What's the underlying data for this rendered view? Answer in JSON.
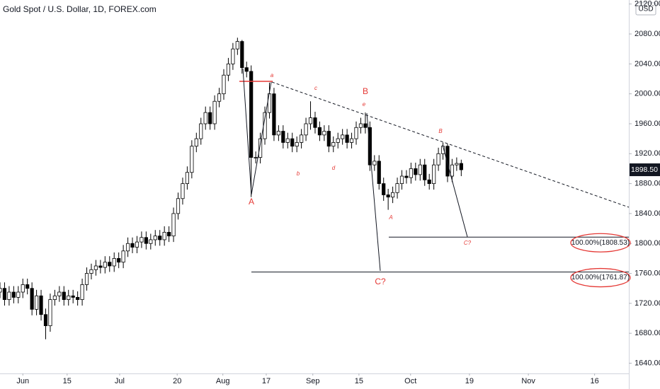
{
  "chart_data": {
    "type": "candlestick",
    "title": "Gold Spot / U.S. Dollar, 1D, FOREX.com",
    "currency": "USD",
    "xlim": [
      0,
      137.7
    ],
    "xticks": [
      {
        "value": 5,
        "label": "Jun"
      },
      {
        "value": 14.7,
        "label": "15"
      },
      {
        "value": 26.2,
        "label": "Jul"
      },
      {
        "value": 38.8,
        "label": "20"
      },
      {
        "value": 48.8,
        "label": "Aug"
      },
      {
        "value": 58.3,
        "label": "17"
      },
      {
        "value": 68.5,
        "label": "Sep"
      },
      {
        "value": 78.6,
        "label": "15"
      },
      {
        "value": 89.9,
        "label": "Oct"
      },
      {
        "value": 102.8,
        "label": "19"
      },
      {
        "value": 115.7,
        "label": "Nov"
      },
      {
        "value": 130.2,
        "label": "16"
      }
    ],
    "ylim": [
      1626.3,
      2125.4
    ],
    "yticks": [
      {
        "value": 1640,
        "label": "1640.00"
      },
      {
        "value": 1680,
        "label": "1680.00"
      },
      {
        "value": 1720,
        "label": "1720.00"
      },
      {
        "value": 1760,
        "label": "1760.00"
      },
      {
        "value": 1800,
        "label": "1800.00"
      },
      {
        "value": 1840,
        "label": "1840.00"
      },
      {
        "value": 1880,
        "label": "1880.00"
      },
      {
        "value": 1920,
        "label": "1920.00"
      },
      {
        "value": 1960,
        "label": "1960.00"
      },
      {
        "value": 2000,
        "label": "2000.00"
      },
      {
        "value": 2040,
        "label": "2040.00"
      },
      {
        "value": 2080,
        "label": "2080.00"
      },
      {
        "value": 2120,
        "label": "2120.00"
      }
    ],
    "up_color": "#ffffff",
    "down_color": "#000000",
    "open": [
      1735,
      1740,
      1725,
      1735,
      1728,
      1735,
      1745,
      1740,
      1712,
      1730,
      1705,
      1690,
      1725,
      1730,
      1735,
      1725,
      1730,
      1728,
      1725,
      1745,
      1760,
      1765,
      1770,
      1768,
      1775,
      1770,
      1780,
      1775,
      1790,
      1800,
      1795,
      1802,
      1808,
      1800,
      1805,
      1810,
      1805,
      1815,
      1810,
      1840,
      1860,
      1880,
      1895,
      1930,
      1940,
      1960,
      1975,
      1960,
      1990,
      2000,
      2025,
      2040,
      2060,
      2070,
      2035,
      2030,
      1915,
      1915,
      1940,
      1975,
      2000,
      1945,
      1950,
      1935,
      1940,
      1930,
      1935,
      1945,
      1960,
      1968,
      1955,
      1945,
      1950,
      1930,
      1935,
      1940,
      1945,
      1935,
      1940,
      1955,
      1960,
      1955,
      1905,
      1910,
      1880,
      1865,
      1862,
      1868,
      1880,
      1890,
      1888,
      1900,
      1892,
      1905,
      1885,
      1880,
      1905,
      1920,
      1930,
      1890,
      1905,
      1907
    ],
    "high": [
      1748,
      1748,
      1743,
      1743,
      1743,
      1753,
      1753,
      1748,
      1738,
      1738,
      1713,
      1733,
      1738,
      1743,
      1743,
      1738,
      1738,
      1736,
      1753,
      1768,
      1773,
      1778,
      1778,
      1783,
      1783,
      1788,
      1788,
      1798,
      1808,
      1808,
      1810,
      1816,
      1816,
      1813,
      1818,
      1818,
      1823,
      1823,
      1848,
      1868,
      1888,
      1903,
      1938,
      1948,
      1968,
      1983,
      1983,
      1998,
      2008,
      2033,
      2048,
      2068,
      2075,
      2072,
      2043,
      2038,
      1923,
      1948,
      1983,
      2015,
      2008,
      1958,
      1958,
      1948,
      1948,
      1943,
      1953,
      1968,
      1990,
      1976,
      1963,
      1958,
      1958,
      1943,
      1948,
      1953,
      1953,
      1948,
      1963,
      1968,
      1975,
      1963,
      1918,
      1918,
      1888,
      1873,
      1876,
      1888,
      1898,
      1898,
      1908,
      1908,
      1913,
      1913,
      1893,
      1913,
      1928,
      1935,
      1933,
      1913,
      1915,
      1912
    ],
    "low": [
      1727,
      1717,
      1717,
      1720,
      1720,
      1727,
      1732,
      1704,
      1704,
      1697,
      1672,
      1682,
      1717,
      1722,
      1717,
      1717,
      1720,
      1717,
      1717,
      1737,
      1752,
      1757,
      1760,
      1760,
      1762,
      1762,
      1767,
      1767,
      1782,
      1787,
      1787,
      1794,
      1792,
      1792,
      1797,
      1797,
      1797,
      1802,
      1802,
      1832,
      1852,
      1872,
      1887,
      1922,
      1932,
      1952,
      1952,
      1952,
      1982,
      1992,
      2017,
      2032,
      2052,
      2027,
      2022,
      1862,
      1907,
      1907,
      1932,
      1967,
      1937,
      1937,
      1927,
      1927,
      1922,
      1922,
      1927,
      1937,
      1952,
      1947,
      1937,
      1937,
      1922,
      1922,
      1927,
      1932,
      1927,
      1927,
      1932,
      1947,
      1947,
      1897,
      1897,
      1872,
      1857,
      1845,
      1854,
      1860,
      1872,
      1880,
      1880,
      1884,
      1884,
      1877,
      1872,
      1872,
      1897,
      1912,
      1882,
      1882,
      1897,
      1890
    ],
    "close": [
      1740,
      1725,
      1735,
      1728,
      1735,
      1745,
      1740,
      1712,
      1730,
      1705,
      1690,
      1725,
      1730,
      1735,
      1725,
      1730,
      1728,
      1725,
      1745,
      1760,
      1765,
      1770,
      1768,
      1775,
      1770,
      1780,
      1775,
      1790,
      1800,
      1795,
      1802,
      1808,
      1800,
      1805,
      1810,
      1805,
      1815,
      1810,
      1840,
      1860,
      1880,
      1895,
      1930,
      1940,
      1960,
      1975,
      1960,
      1990,
      2000,
      2025,
      2040,
      2060,
      2070,
      2035,
      2030,
      1915,
      1915,
      1940,
      1975,
      2000,
      1945,
      1950,
      1935,
      1940,
      1930,
      1935,
      1945,
      1960,
      1968,
      1955,
      1945,
      1950,
      1930,
      1935,
      1940,
      1945,
      1935,
      1940,
      1955,
      1960,
      1955,
      1905,
      1910,
      1880,
      1865,
      1862,
      1868,
      1880,
      1890,
      1888,
      1900,
      1892,
      1905,
      1885,
      1880,
      1905,
      1920,
      1930,
      1890,
      1905,
      1907,
      1898.5
    ],
    "last_price": {
      "value": 1898.5,
      "label": "1898.50"
    },
    "levels": [
      {
        "value": 1808.53,
        "label": "100.00%(1808.53)"
      },
      {
        "value": 1761.87,
        "label": "100.00%(1761.87)"
      }
    ],
    "annotations": [
      "A",
      "a",
      "c",
      "B",
      "e",
      "b",
      "d",
      "A",
      "B",
      "C?",
      "C?"
    ]
  }
}
